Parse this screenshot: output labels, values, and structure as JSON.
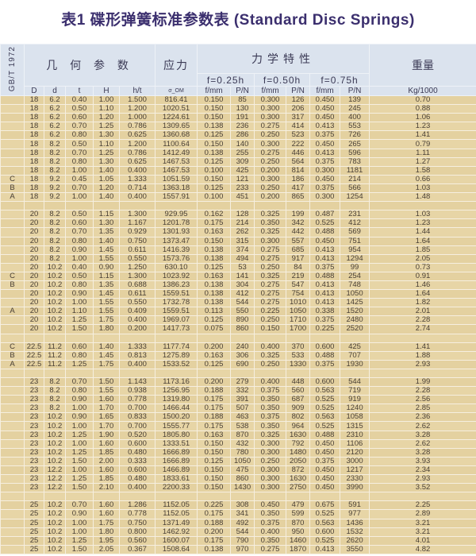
{
  "title": "表1  碟形弹簧标准参数表 (Standard Disc Springs)",
  "header": {
    "standard": "GB/T 1972",
    "geometry": "几 何 参 数",
    "stress": "应力",
    "mechanics": "力学特性",
    "weight": "重量",
    "f1": "f=0.25h",
    "f2": "f=0.50h",
    "f3": "f=0.75h",
    "columns": [
      "D",
      "d",
      "t",
      "H",
      "h/t",
      "σ_OM",
      "f/mm",
      "P/N",
      "f/mm",
      "P/N",
      "f/mm",
      "P/N",
      "Kg/1000"
    ]
  },
  "colors": {
    "header_bg": "#dbe3ee",
    "body_bg": "#e7d5a6",
    "title": "#3b2f6e"
  },
  "rows": [
    [
      "",
      "18",
      "6.2",
      "0.40",
      "1.00",
      "1.500",
      "816.41",
      "0.150",
      "85",
      "0.300",
      "126",
      "0.450",
      "139",
      "0.70"
    ],
    [
      "",
      "18",
      "6.2",
      "0.50",
      "1.10",
      "1.200",
      "1020.51",
      "0.150",
      "130",
      "0.300",
      "206",
      "0.450",
      "245",
      "0.88"
    ],
    [
      "",
      "18",
      "6.2",
      "0.60",
      "1.20",
      "1.000",
      "1224.61",
      "0.150",
      "191",
      "0.300",
      "317",
      "0.450",
      "400",
      "1.06"
    ],
    [
      "",
      "18",
      "6.2",
      "0.70",
      "1.25",
      "0.786",
      "1309.65",
      "0.138",
      "236",
      "0.275",
      "414",
      "0.413",
      "553",
      "1.23"
    ],
    [
      "",
      "18",
      "6.2",
      "0.80",
      "1.30",
      "0.625",
      "1360.68",
      "0.125",
      "286",
      "0.250",
      "523",
      "0.375",
      "726",
      "1.41"
    ],
    [
      "",
      "18",
      "8.2",
      "0.50",
      "1.10",
      "1.200",
      "1100.64",
      "0.150",
      "140",
      "0.300",
      "222",
      "0.450",
      "265",
      "0.79"
    ],
    [
      "",
      "18",
      "8.2",
      "0.70",
      "1.25",
      "0.786",
      "1412.49",
      "0.138",
      "255",
      "0.275",
      "446",
      "0.413",
      "596",
      "1.11"
    ],
    [
      "",
      "18",
      "8.2",
      "0.80",
      "1.30",
      "0.625",
      "1467.53",
      "0.125",
      "309",
      "0.250",
      "564",
      "0.375",
      "783",
      "1.27"
    ],
    [
      "",
      "18",
      "8.2",
      "1.00",
      "1.40",
      "0.400",
      "1467.53",
      "0.100",
      "425",
      "0.200",
      "814",
      "0.300",
      "1181",
      "1.58"
    ],
    [
      "C",
      "18",
      "9.2",
      "0.45",
      "1.05",
      "1.333",
      "1051.59",
      "0.150",
      "121",
      "0.300",
      "186",
      "0.450",
      "214",
      "0.66"
    ],
    [
      "B",
      "18",
      "9.2",
      "0.70",
      "1.20",
      "0.714",
      "1363.18",
      "0.125",
      "233",
      "0.250",
      "417",
      "0.375",
      "566",
      "1.03"
    ],
    [
      "A",
      "18",
      "9.2",
      "1.00",
      "1.40",
      "0.400",
      "1557.91",
      "0.100",
      "451",
      "0.200",
      "865",
      "0.300",
      "1254",
      "1.48"
    ],
    [],
    [
      "",
      "20",
      "8.2",
      "0.50",
      "1.15",
      "1.300",
      "929.95",
      "0.162",
      "128",
      "0.325",
      "199",
      "0.487",
      "231",
      "1.03"
    ],
    [
      "",
      "20",
      "8.2",
      "0.60",
      "1.30",
      "1.167",
      "1201.78",
      "0.175",
      "214",
      "0.350",
      "342",
      "0.525",
      "412",
      "1.23"
    ],
    [
      "",
      "20",
      "8.2",
      "0.70",
      "1.35",
      "0.929",
      "1301.93",
      "0.163",
      "262",
      "0.325",
      "442",
      "0.488",
      "569",
      "1.44"
    ],
    [
      "",
      "20",
      "8.2",
      "0.80",
      "1.40",
      "0.750",
      "1373.47",
      "0.150",
      "315",
      "0.300",
      "557",
      "0.450",
      "751",
      "1.64"
    ],
    [
      "",
      "20",
      "8.2",
      "0.90",
      "1.45",
      "0.611",
      "1416.39",
      "0.138",
      "374",
      "0.275",
      "685",
      "0.413",
      "954",
      "1.85"
    ],
    [
      "",
      "20",
      "8.2",
      "1.00",
      "1.55",
      "0.550",
      "1573.76",
      "0.138",
      "494",
      "0.275",
      "917",
      "0.413",
      "1294",
      "2.05"
    ],
    [
      "",
      "20",
      "10.2",
      "0.40",
      "0.90",
      "1.250",
      "630.10",
      "0.125",
      "53",
      "0.250",
      "84",
      "0.375",
      "99",
      "0.73"
    ],
    [
      "C",
      "20",
      "10.2",
      "0.50",
      "1.15",
      "1.300",
      "1023.92",
      "0.163",
      "141",
      "0.325",
      "219",
      "0.488",
      "254",
      "0.91"
    ],
    [
      "B",
      "20",
      "10.2",
      "0.80",
      "1.35",
      "0.688",
      "1386.23",
      "0.138",
      "304",
      "0.275",
      "547",
      "0.413",
      "748",
      "1.46"
    ],
    [
      "",
      "20",
      "10.2",
      "0.90",
      "1.45",
      "0.611",
      "1559.51",
      "0.138",
      "412",
      "0.275",
      "754",
      "0.413",
      "1050",
      "1.64"
    ],
    [
      "",
      "20",
      "10.2",
      "1.00",
      "1.55",
      "0.550",
      "1732.78",
      "0.138",
      "544",
      "0.275",
      "1010",
      "0.413",
      "1425",
      "1.82"
    ],
    [
      "A",
      "20",
      "10.2",
      "1.10",
      "1.55",
      "0.409",
      "1559.51",
      "0.113",
      "550",
      "0.225",
      "1050",
      "0.338",
      "1520",
      "2.01"
    ],
    [
      "",
      "20",
      "10.2",
      "1.25",
      "1.75",
      "0.400",
      "1969.07",
      "0.125",
      "890",
      "0.250",
      "1710",
      "0.375",
      "2480",
      "2.28"
    ],
    [
      "",
      "20",
      "10.2",
      "1.50",
      "1.80",
      "0.200",
      "1417.73",
      "0.075",
      "860",
      "0.150",
      "1700",
      "0.225",
      "2520",
      "2.74"
    ],
    [],
    [
      "C",
      "22.5",
      "11.2",
      "0.60",
      "1.40",
      "1.333",
      "1177.74",
      "0.200",
      "240",
      "0.400",
      "370",
      "0.600",
      "425",
      "1.41"
    ],
    [
      "B",
      "22.5",
      "11.2",
      "0.80",
      "1.45",
      "0.813",
      "1275.89",
      "0.163",
      "306",
      "0.325",
      "533",
      "0.488",
      "707",
      "1.88"
    ],
    [
      "A",
      "22.5",
      "11.2",
      "1.25",
      "1.75",
      "0.400",
      "1533.52",
      "0.125",
      "690",
      "0.250",
      "1330",
      "0.375",
      "1930",
      "2.93"
    ],
    [],
    [
      "",
      "23",
      "8.2",
      "0.70",
      "1.50",
      "1.143",
      "1173.16",
      "0.200",
      "279",
      "0.400",
      "448",
      "0.600",
      "544",
      "1.99"
    ],
    [
      "",
      "23",
      "8.2",
      "0.80",
      "1.55",
      "0.938",
      "1256.95",
      "0.188",
      "332",
      "0.375",
      "560",
      "0.563",
      "719",
      "2.28"
    ],
    [
      "",
      "23",
      "8.2",
      "0.90",
      "1.60",
      "0.778",
      "1319.80",
      "0.175",
      "391",
      "0.350",
      "687",
      "0.525",
      "919",
      "2.56"
    ],
    [
      "",
      "23",
      "8.2",
      "1.00",
      "1.70",
      "0.700",
      "1466.44",
      "0.175",
      "507",
      "0.350",
      "909",
      "0.525",
      "1240",
      "2.85"
    ],
    [
      "",
      "23",
      "10.2",
      "0.90",
      "1.65",
      "0.833",
      "1500.20",
      "0.188",
      "463",
      "0.375",
      "802",
      "0.563",
      "1058",
      "2.36"
    ],
    [
      "",
      "23",
      "10.2",
      "1.00",
      "1.70",
      "0.700",
      "1555.77",
      "0.175",
      "538",
      "0.350",
      "964",
      "0.525",
      "1315",
      "2.62"
    ],
    [
      "",
      "23",
      "10.2",
      "1.25",
      "1.90",
      "0.520",
      "1805.80",
      "0.163",
      "870",
      "0.325",
      "1630",
      "0.488",
      "2310",
      "3.28"
    ],
    [
      "",
      "23",
      "10.2",
      "1.00",
      "1.60",
      "0.600",
      "1333.51",
      "0.150",
      "432",
      "0.300",
      "792",
      "0.450",
      "1106",
      "2.62"
    ],
    [
      "",
      "23",
      "10.2",
      "1.25",
      "1.85",
      "0.480",
      "1666.89",
      "0.150",
      "780",
      "0.300",
      "1480",
      "0.450",
      "2120",
      "3.28"
    ],
    [
      "",
      "23",
      "10.2",
      "1.50",
      "2.00",
      "0.333",
      "1666.89",
      "0.125",
      "1050",
      "0.250",
      "2050",
      "0.375",
      "3000",
      "3.93"
    ],
    [
      "",
      "23",
      "12.2",
      "1.00",
      "1.60",
      "0.600",
      "1466.89",
      "0.150",
      "475",
      "0.300",
      "872",
      "0.450",
      "1217",
      "2.34"
    ],
    [
      "",
      "23",
      "12.2",
      "1.25",
      "1.85",
      "0.480",
      "1833.61",
      "0.150",
      "860",
      "0.300",
      "1630",
      "0.450",
      "2330",
      "2.93"
    ],
    [
      "",
      "23",
      "12.2",
      "1.50",
      "2.10",
      "0.400",
      "2200.33",
      "0.150",
      "1430",
      "0.300",
      "2750",
      "0.450",
      "3990",
      "3.52"
    ],
    [],
    [
      "",
      "25",
      "10.2",
      "0.70",
      "1.60",
      "1.286",
      "1152.05",
      "0.225",
      "308",
      "0.450",
      "479",
      "0.675",
      "591",
      "2.25"
    ],
    [
      "",
      "25",
      "10.2",
      "0.90",
      "1.60",
      "0.778",
      "1152.05",
      "0.175",
      "341",
      "0.350",
      "599",
      "0.525",
      "977",
      "2.89"
    ],
    [
      "",
      "25",
      "10.2",
      "1.00",
      "1.75",
      "0.750",
      "1371.49",
      "0.188",
      "492",
      "0.375",
      "870",
      "0.563",
      "1436",
      "3.21"
    ],
    [
      "",
      "25",
      "10.2",
      "1.00",
      "1.80",
      "0.800",
      "1462.92",
      "0.200",
      "544",
      "0.400",
      "950",
      "0.600",
      "1532",
      "3.21"
    ],
    [
      "",
      "25",
      "10.2",
      "1.25",
      "1.95",
      "0.560",
      "1600.07",
      "0.175",
      "790",
      "0.350",
      "1460",
      "0.525",
      "2620",
      "4.01"
    ],
    [
      "",
      "25",
      "10.2",
      "1.50",
      "2.05",
      "0.367",
      "1508.64",
      "0.138",
      "970",
      "0.275",
      "1870",
      "0.413",
      "3550",
      "4.82"
    ]
  ]
}
